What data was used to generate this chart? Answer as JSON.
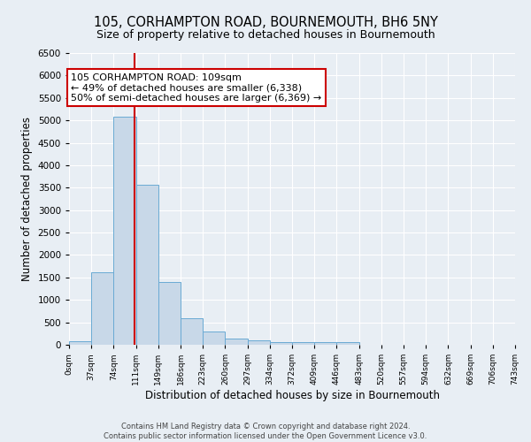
{
  "title1": "105, CORHAMPTON ROAD, BOURNEMOUTH, BH6 5NY",
  "title2": "Size of property relative to detached houses in Bournemouth",
  "xlabel": "Distribution of detached houses by size in Bournemouth",
  "ylabel": "Number of detached properties",
  "bin_edges": [
    0,
    37,
    74,
    111,
    148,
    185,
    222,
    259,
    296,
    333,
    370,
    407,
    444,
    481,
    518,
    555,
    592,
    629,
    666,
    703,
    740
  ],
  "bin_heights": [
    75,
    1625,
    5075,
    3575,
    1400,
    600,
    290,
    140,
    90,
    65,
    60,
    55,
    60,
    0,
    0,
    0,
    0,
    0,
    0,
    0
  ],
  "bar_color": "#c8d8e8",
  "bar_edge_color": "#6aaad4",
  "vline_x": 109,
  "vline_color": "#cc0000",
  "annotation_text": "105 CORHAMPTON ROAD: 109sqm\n← 49% of detached houses are smaller (6,338)\n50% of semi-detached houses are larger (6,369) →",
  "annotation_box_color": "white",
  "annotation_box_edge_color": "#cc0000",
  "ylim": [
    0,
    6500
  ],
  "tick_labels": [
    "0sqm",
    "37sqm",
    "74sqm",
    "111sqm",
    "149sqm",
    "186sqm",
    "223sqm",
    "260sqm",
    "297sqm",
    "334sqm",
    "372sqm",
    "409sqm",
    "446sqm",
    "483sqm",
    "520sqm",
    "557sqm",
    "594sqm",
    "632sqm",
    "669sqm",
    "706sqm",
    "743sqm"
  ],
  "background_color": "#e8eef4",
  "grid_color": "white",
  "title1_fontsize": 10.5,
  "title2_fontsize": 9,
  "yticks": [
    0,
    500,
    1000,
    1500,
    2000,
    2500,
    3000,
    3500,
    4000,
    4500,
    5000,
    5500,
    6000,
    6500
  ],
  "footer": "Contains HM Land Registry data © Crown copyright and database right 2024.\nContains public sector information licensed under the Open Government Licence v3.0."
}
